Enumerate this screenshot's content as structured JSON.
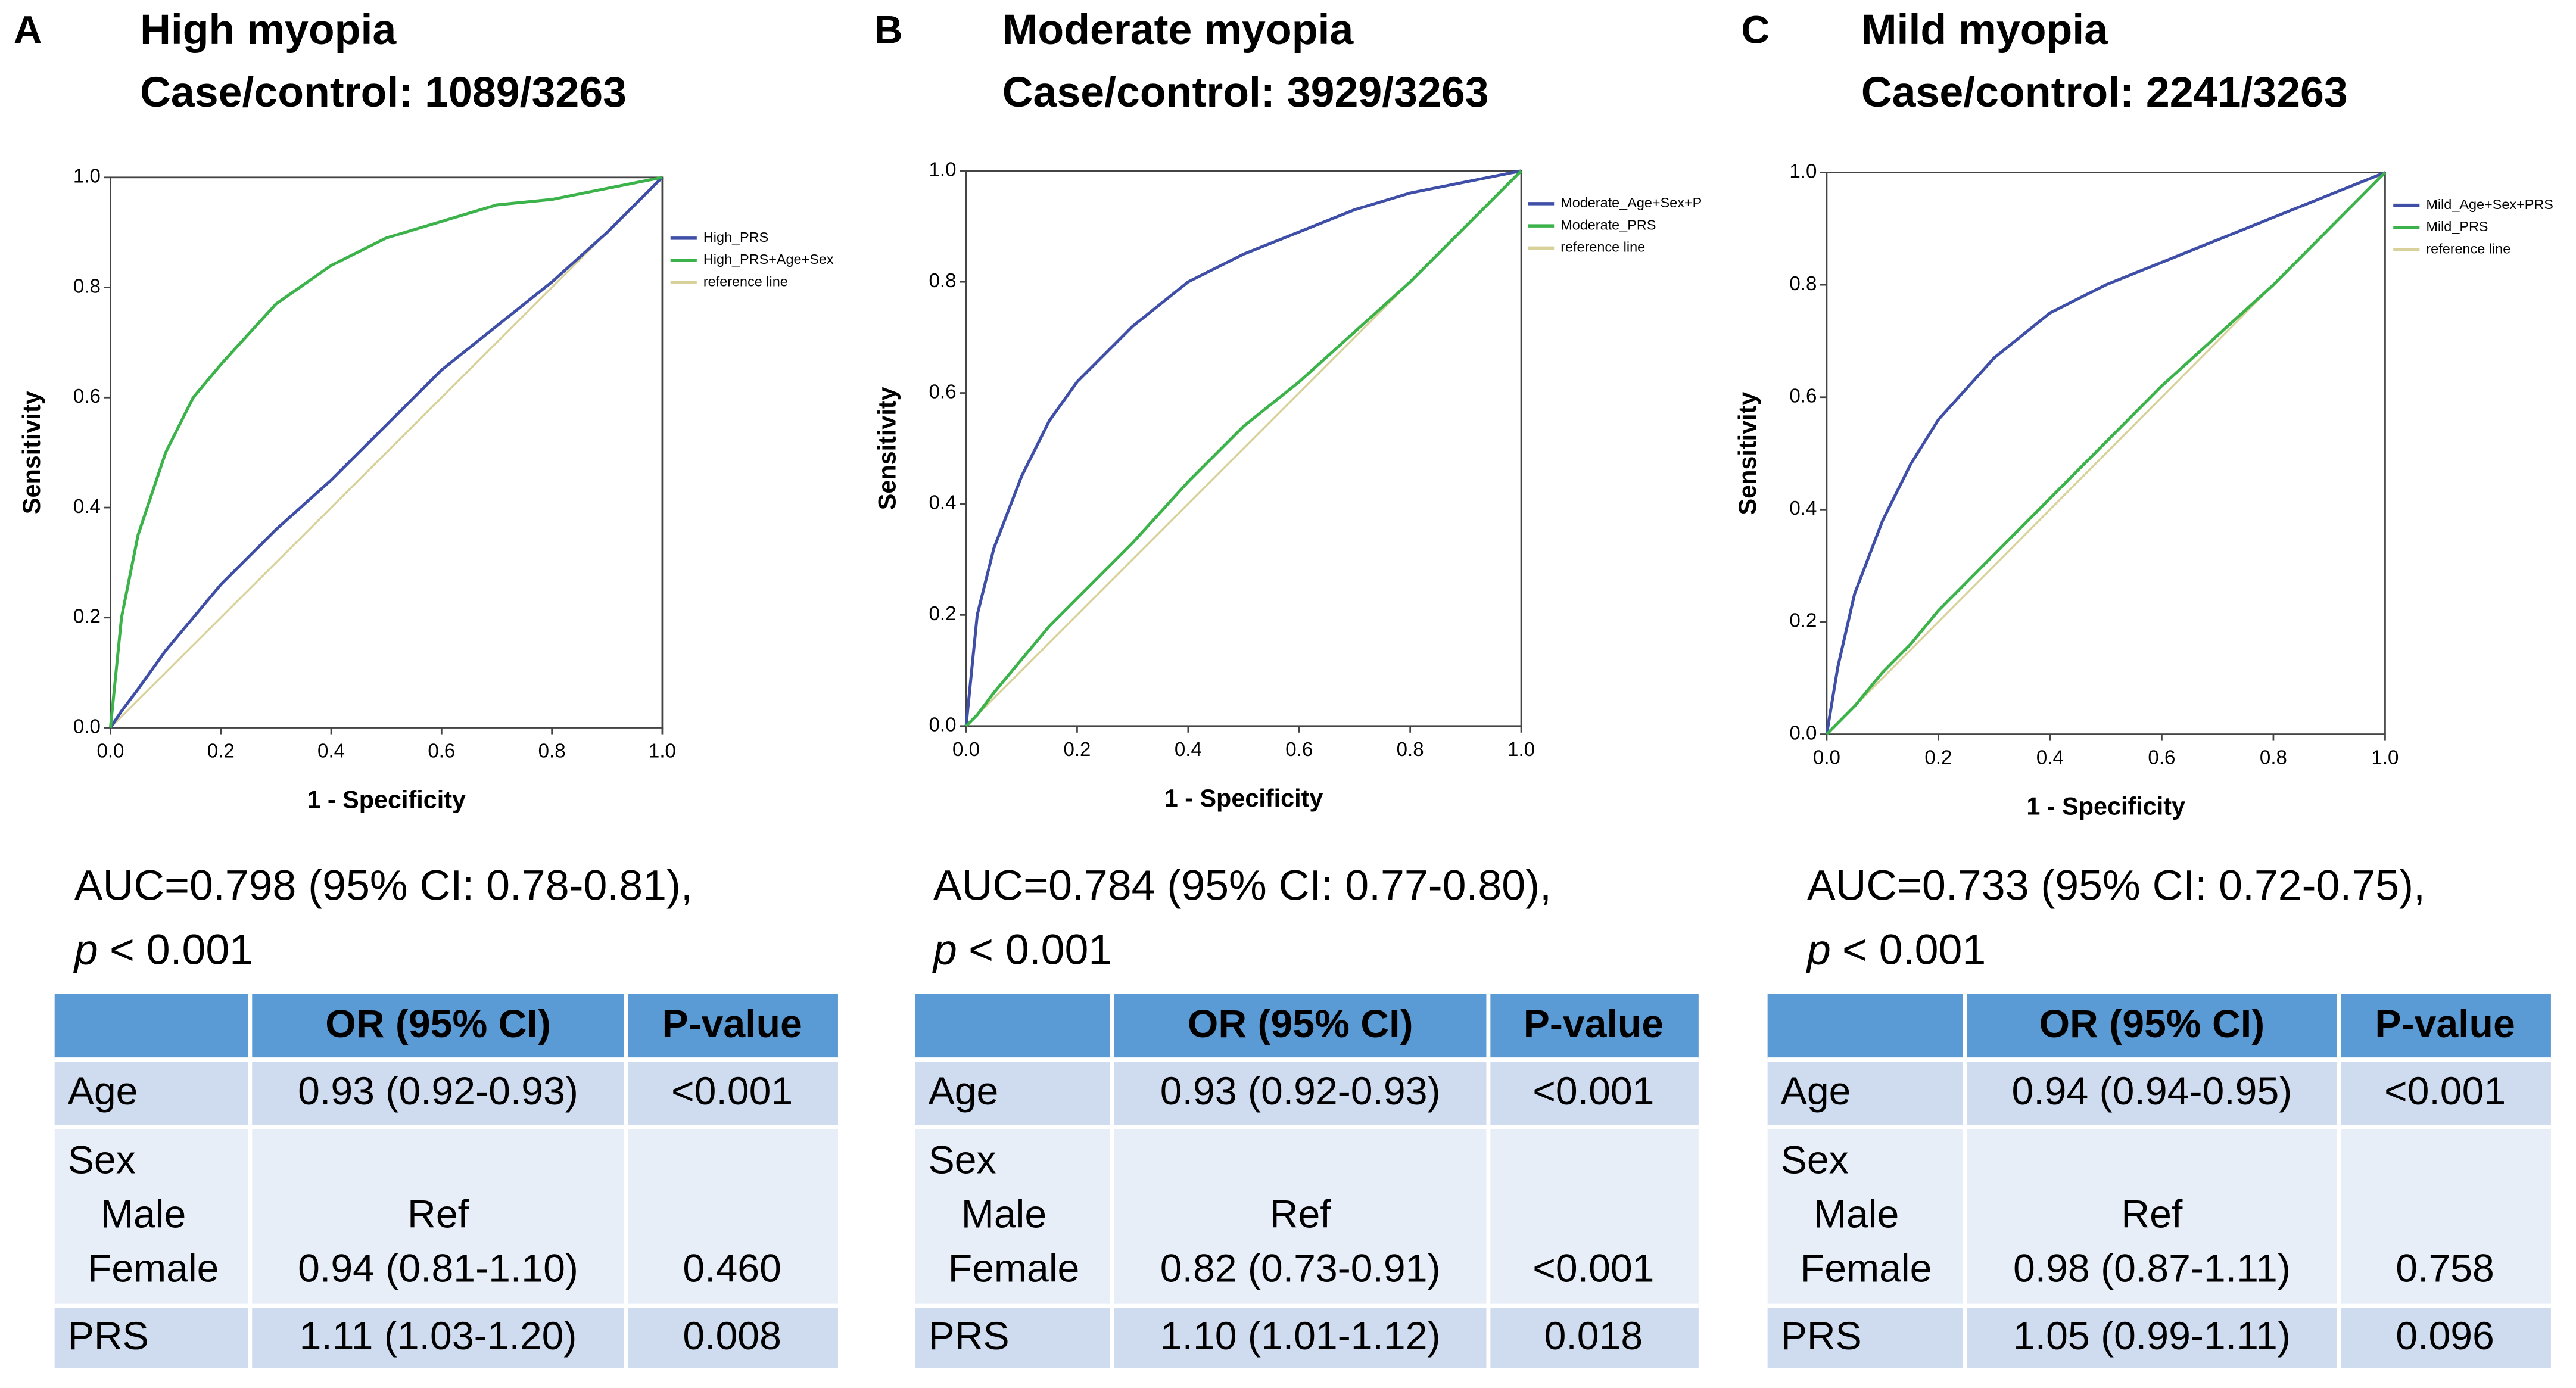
{
  "chart_data": [
    {
      "type": "line",
      "panel": "A",
      "title": "High myopia",
      "subtitle": "Case/control: 1089/3263",
      "xlabel": "1 - Specificity",
      "ylabel": "Sensitivity",
      "x": [
        0,
        0.02,
        0.05,
        0.1,
        0.15,
        0.2,
        0.3,
        0.4,
        0.5,
        0.6,
        0.7,
        0.8,
        0.9,
        1
      ],
      "series": [
        {
          "name": "High_PRS",
          "color": "#3f4fa8",
          "values": [
            0,
            0.03,
            0.07,
            0.14,
            0.2,
            0.26,
            0.36,
            0.45,
            0.55,
            0.65,
            0.73,
            0.81,
            0.9,
            1
          ]
        },
        {
          "name": "High_PRS+Age+Sex",
          "color": "#3cb34a",
          "values": [
            0,
            0.2,
            0.35,
            0.5,
            0.6,
            0.66,
            0.77,
            0.84,
            0.89,
            0.92,
            0.95,
            0.96,
            0.98,
            1
          ]
        },
        {
          "name": "reference line",
          "color": "#d8d29a",
          "values": [
            0,
            0.02,
            0.05,
            0.1,
            0.15,
            0.2,
            0.3,
            0.4,
            0.5,
            0.6,
            0.7,
            0.8,
            0.9,
            1
          ]
        }
      ],
      "xlim": [
        0,
        1
      ],
      "ylim": [
        0,
        1
      ],
      "xticks": [
        {
          "value": 0,
          "label": "0.0"
        },
        {
          "value": 0.2,
          "label": "0.2"
        },
        {
          "value": 0.4,
          "label": "0.4"
        },
        {
          "value": 0.6,
          "label": "0.6"
        },
        {
          "value": 0.8,
          "label": "0.8"
        },
        {
          "value": 1,
          "label": "1.0"
        }
      ],
      "yticks": [
        {
          "value": 0,
          "label": "0.0"
        },
        {
          "value": 0.2,
          "label": "0.2"
        },
        {
          "value": 0.4,
          "label": "0.4"
        },
        {
          "value": 0.6,
          "label": "0.6"
        },
        {
          "value": 0.8,
          "label": "0.8"
        },
        {
          "value": 1,
          "label": "1.0"
        }
      ],
      "legend": "right"
    },
    {
      "type": "line",
      "panel": "B",
      "title": "Moderate myopia",
      "subtitle": "Case/control: 3929/3263",
      "xlabel": "1 - Specificity",
      "ylabel": "Sensitivity",
      "x": [
        0,
        0.02,
        0.05,
        0.1,
        0.15,
        0.2,
        0.3,
        0.4,
        0.5,
        0.6,
        0.7,
        0.8,
        0.9,
        1
      ],
      "series": [
        {
          "name": "Moderate_Age+Sex+P",
          "color": "#3f4fa8",
          "values": [
            0,
            0.2,
            0.32,
            0.45,
            0.55,
            0.62,
            0.72,
            0.8,
            0.85,
            0.89,
            0.93,
            0.96,
            0.98,
            1
          ]
        },
        {
          "name": "Moderate_PRS",
          "color": "#3cb34a",
          "values": [
            0,
            0.02,
            0.06,
            0.12,
            0.18,
            0.23,
            0.33,
            0.44,
            0.54,
            0.62,
            0.71,
            0.8,
            0.9,
            1
          ]
        },
        {
          "name": "reference line",
          "color": "#d8d29a",
          "values": [
            0,
            0.02,
            0.05,
            0.1,
            0.15,
            0.2,
            0.3,
            0.4,
            0.5,
            0.6,
            0.7,
            0.8,
            0.9,
            1
          ]
        }
      ],
      "xlim": [
        0,
        1
      ],
      "ylim": [
        0,
        1
      ],
      "xticks": [
        {
          "value": 0,
          "label": "0.0"
        },
        {
          "value": 0.2,
          "label": "0.2"
        },
        {
          "value": 0.4,
          "label": "0.4"
        },
        {
          "value": 0.6,
          "label": "0.6"
        },
        {
          "value": 0.8,
          "label": "0.8"
        },
        {
          "value": 1,
          "label": "1.0"
        }
      ],
      "yticks": [
        {
          "value": 0,
          "label": "0.0"
        },
        {
          "value": 0.2,
          "label": "0.2"
        },
        {
          "value": 0.4,
          "label": "0.4"
        },
        {
          "value": 0.6,
          "label": "0.6"
        },
        {
          "value": 0.8,
          "label": "0.8"
        },
        {
          "value": 1,
          "label": "1.0"
        }
      ],
      "legend": "right"
    },
    {
      "type": "line",
      "panel": "C",
      "title": "Mild myopia",
      "subtitle": "Case/control: 2241/3263",
      "xlabel": "1 - Specificity",
      "ylabel": "Sensitivity",
      "x": [
        0,
        0.02,
        0.05,
        0.1,
        0.15,
        0.2,
        0.3,
        0.4,
        0.5,
        0.6,
        0.7,
        0.8,
        0.9,
        1
      ],
      "series": [
        {
          "name": "Mild_Age+Sex+PRS",
          "color": "#3f4fa8",
          "values": [
            0,
            0.12,
            0.25,
            0.38,
            0.48,
            0.56,
            0.67,
            0.75,
            0.8,
            0.84,
            0.88,
            0.92,
            0.96,
            1
          ]
        },
        {
          "name": "Mild_PRS",
          "color": "#3cb34a",
          "values": [
            0,
            0.02,
            0.05,
            0.11,
            0.16,
            0.22,
            0.32,
            0.42,
            0.52,
            0.62,
            0.71,
            0.8,
            0.9,
            1
          ]
        },
        {
          "name": "reference line",
          "color": "#d8d29a",
          "values": [
            0,
            0.02,
            0.05,
            0.1,
            0.15,
            0.2,
            0.3,
            0.4,
            0.5,
            0.6,
            0.7,
            0.8,
            0.9,
            1
          ]
        }
      ],
      "xlim": [
        0,
        1
      ],
      "ylim": [
        0,
        1
      ],
      "xticks": [
        {
          "value": 0,
          "label": "0.0"
        },
        {
          "value": 0.2,
          "label": "0.2"
        },
        {
          "value": 0.4,
          "label": "0.4"
        },
        {
          "value": 0.6,
          "label": "0.6"
        },
        {
          "value": 0.8,
          "label": "0.8"
        },
        {
          "value": 1,
          "label": "1.0"
        }
      ],
      "yticks": [
        {
          "value": 0,
          "label": "0.0"
        },
        {
          "value": 0.2,
          "label": "0.2"
        },
        {
          "value": 0.4,
          "label": "0.4"
        },
        {
          "value": 0.6,
          "label": "0.6"
        },
        {
          "value": 0.8,
          "label": "0.8"
        },
        {
          "value": 1,
          "label": "1.0"
        }
      ],
      "legend": "right"
    }
  ],
  "panels": [
    {
      "auc": "AUC=0.798 (95% CI: 0.78-0.81),",
      "p_symbol": "p",
      "p_text": "< 0.001",
      "table": {
        "header": [
          "OR (95% CI)",
          "P-value"
        ],
        "age": {
          "label": "Age",
          "or": "0.93 (0.92-0.93)",
          "p": "<0.001"
        },
        "sex": {
          "label": "Sex",
          "male": {
            "label": "Male",
            "or": "Ref"
          },
          "female": {
            "label": "Female",
            "or": "0.94 (0.81-1.10)",
            "p": "0.460"
          }
        },
        "prs": {
          "label": "PRS",
          "or": "1.11 (1.03-1.20)",
          "p": "0.008"
        }
      }
    },
    {
      "auc": "AUC=0.784 (95% CI: 0.77-0.80),",
      "p_symbol": "p",
      "p_text": "< 0.001",
      "table": {
        "header": [
          "OR (95% CI)",
          "P-value"
        ],
        "age": {
          "label": "Age",
          "or": "0.93 (0.92-0.93)",
          "p": "<0.001"
        },
        "sex": {
          "label": "Sex",
          "male": {
            "label": "Male",
            "or": "Ref"
          },
          "female": {
            "label": "Female",
            "or": "0.82 (0.73-0.91)",
            "p": "<0.001"
          }
        },
        "prs": {
          "label": "PRS",
          "or": "1.10 (1.01-1.12)",
          "p": "0.018"
        }
      }
    },
    {
      "auc": "AUC=0.733 (95% CI: 0.72-0.75),",
      "p_symbol": "p",
      "p_text": "< 0.001",
      "table": {
        "header": [
          "OR (95% CI)",
          "P-value"
        ],
        "age": {
          "label": "Age",
          "or": "0.94 (0.94-0.95)",
          "p": "<0.001"
        },
        "sex": {
          "label": "Sex",
          "male": {
            "label": "Male",
            "or": "Ref"
          },
          "female": {
            "label": "Female",
            "or": "0.98 (0.87-1.11)",
            "p": "0.758"
          }
        },
        "prs": {
          "label": "PRS",
          "or": "1.05 (0.99-1.11)",
          "p": "0.096"
        }
      }
    }
  ]
}
